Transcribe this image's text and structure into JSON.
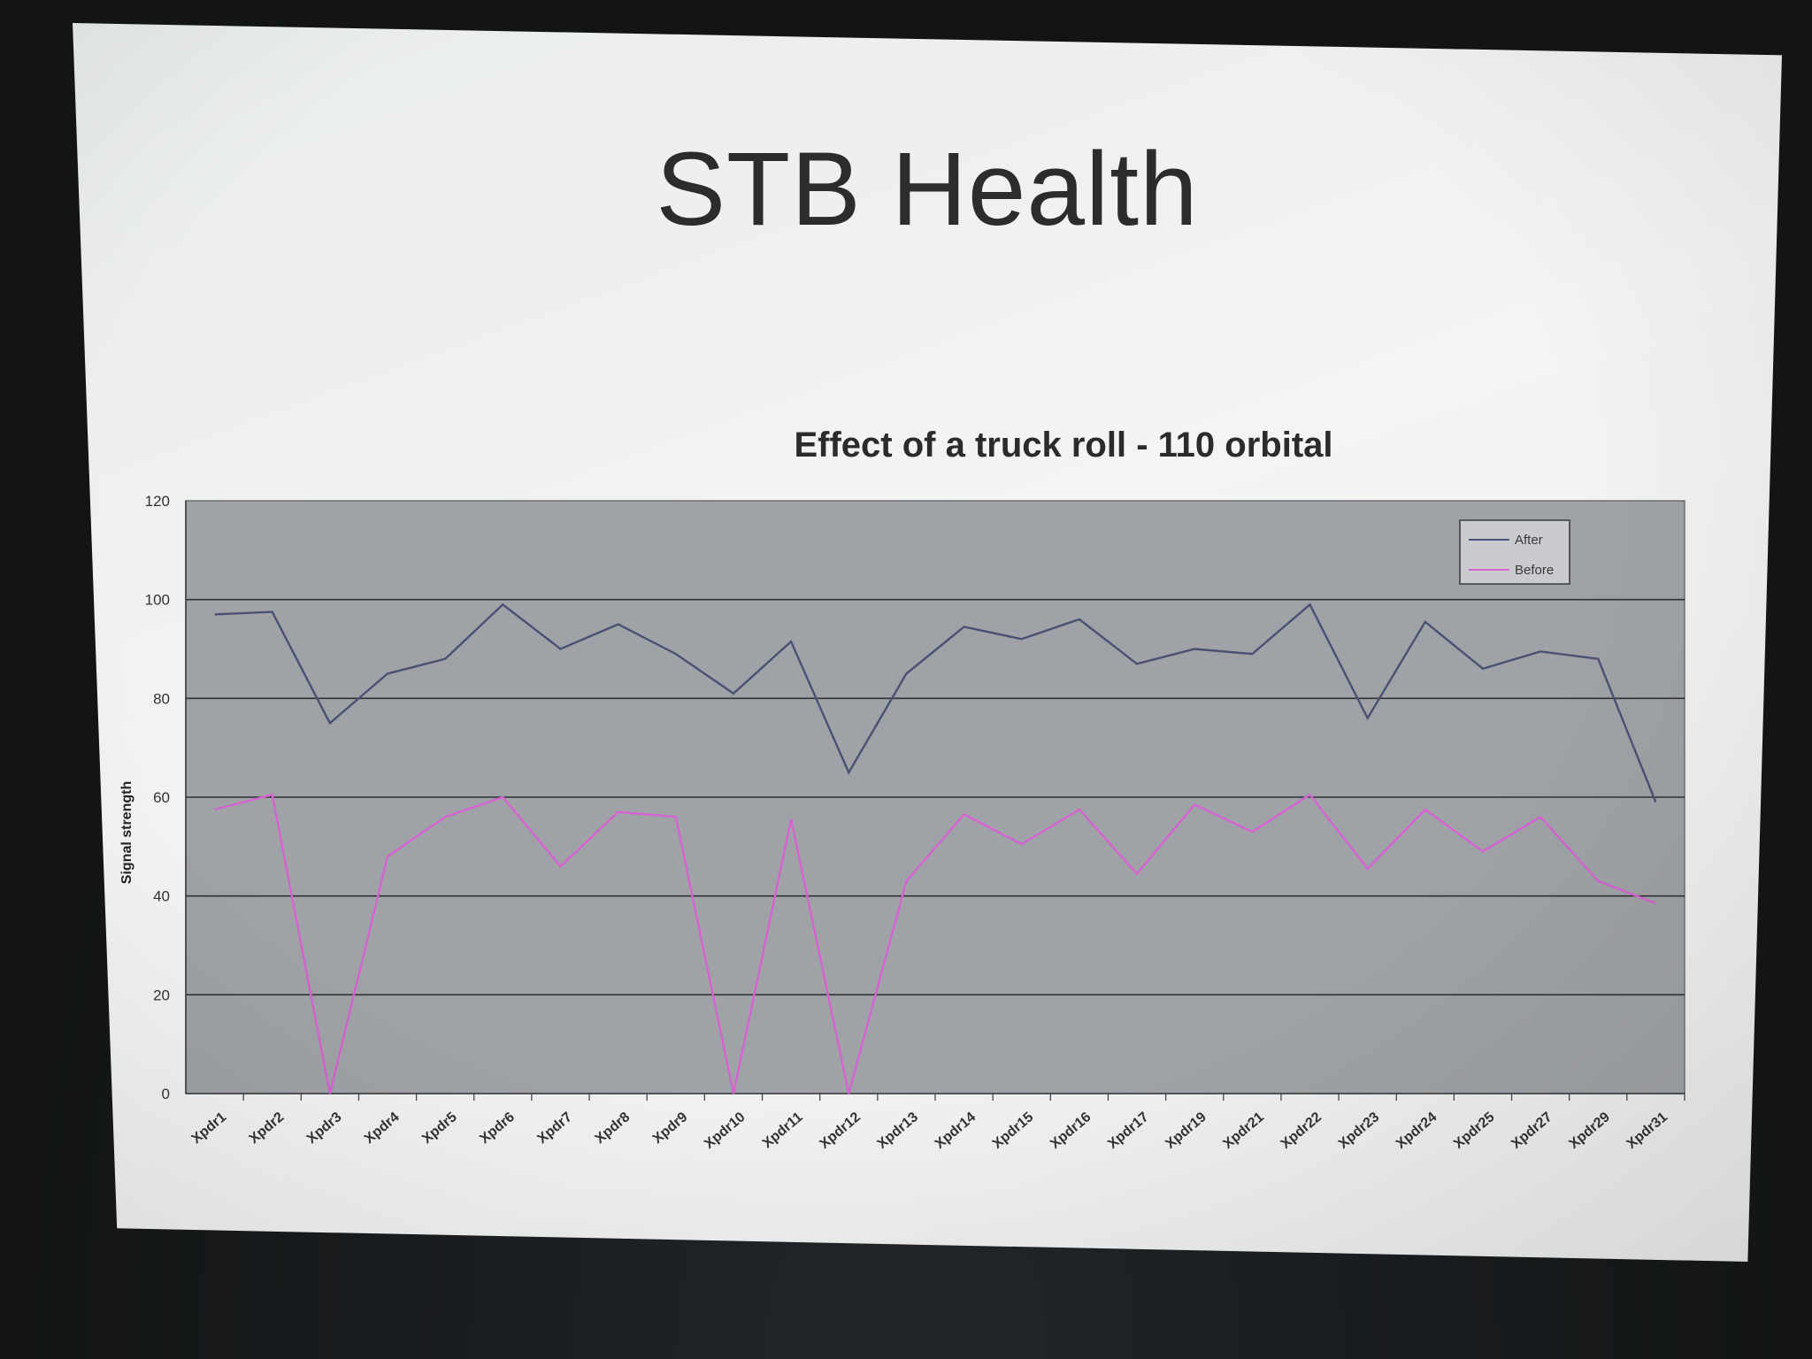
{
  "slide": {
    "title": "STB Health"
  },
  "colors": {
    "after": "#4a5273",
    "before": "#d563d1",
    "plot_area": "#9fa2a6",
    "gridline": "#2f3134",
    "axis_text": "#333333"
  },
  "chart_data": {
    "type": "line",
    "title": "Effect of a truck roll - 110 orbital",
    "xlabel": "",
    "ylabel": "Signal strength",
    "ylim": [
      0,
      120
    ],
    "yticks": [
      0,
      20,
      40,
      60,
      80,
      100,
      120
    ],
    "grid": true,
    "legend_position": "top-right",
    "categories": [
      "Xpdr1",
      "Xpdr2",
      "Xpdr3",
      "Xpdr4",
      "Xpdr5",
      "Xpdr6",
      "Xpdr7",
      "Xpdr8",
      "Xpdr9",
      "Xpdr10",
      "Xpdr11",
      "Xpdr12",
      "Xpdr13",
      "Xpdr14",
      "Xpdr15",
      "Xpdr16",
      "Xpdr17",
      "Xpdr19",
      "Xpdr21",
      "Xpdr22",
      "Xpdr23",
      "Xpdr24",
      "Xpdr25",
      "Xpdr27",
      "Xpdr29",
      "Xpdr31"
    ],
    "series": [
      {
        "name": "After",
        "values": [
          97,
          97.5,
          75,
          85,
          88,
          99,
          90,
          95,
          89,
          81,
          91.5,
          65,
          85,
          94.5,
          92,
          96,
          87,
          90,
          89,
          99,
          76,
          95.5,
          86,
          89.5,
          88,
          59
        ]
      },
      {
        "name": "Before",
        "values": [
          57.5,
          60.5,
          0,
          48,
          56,
          60,
          46,
          57,
          56,
          0,
          55.5,
          0,
          43,
          56.5,
          50.5,
          57.5,
          44.5,
          58.5,
          53,
          60.5,
          45.5,
          57.5,
          49,
          56,
          43,
          38.5
        ]
      }
    ]
  }
}
